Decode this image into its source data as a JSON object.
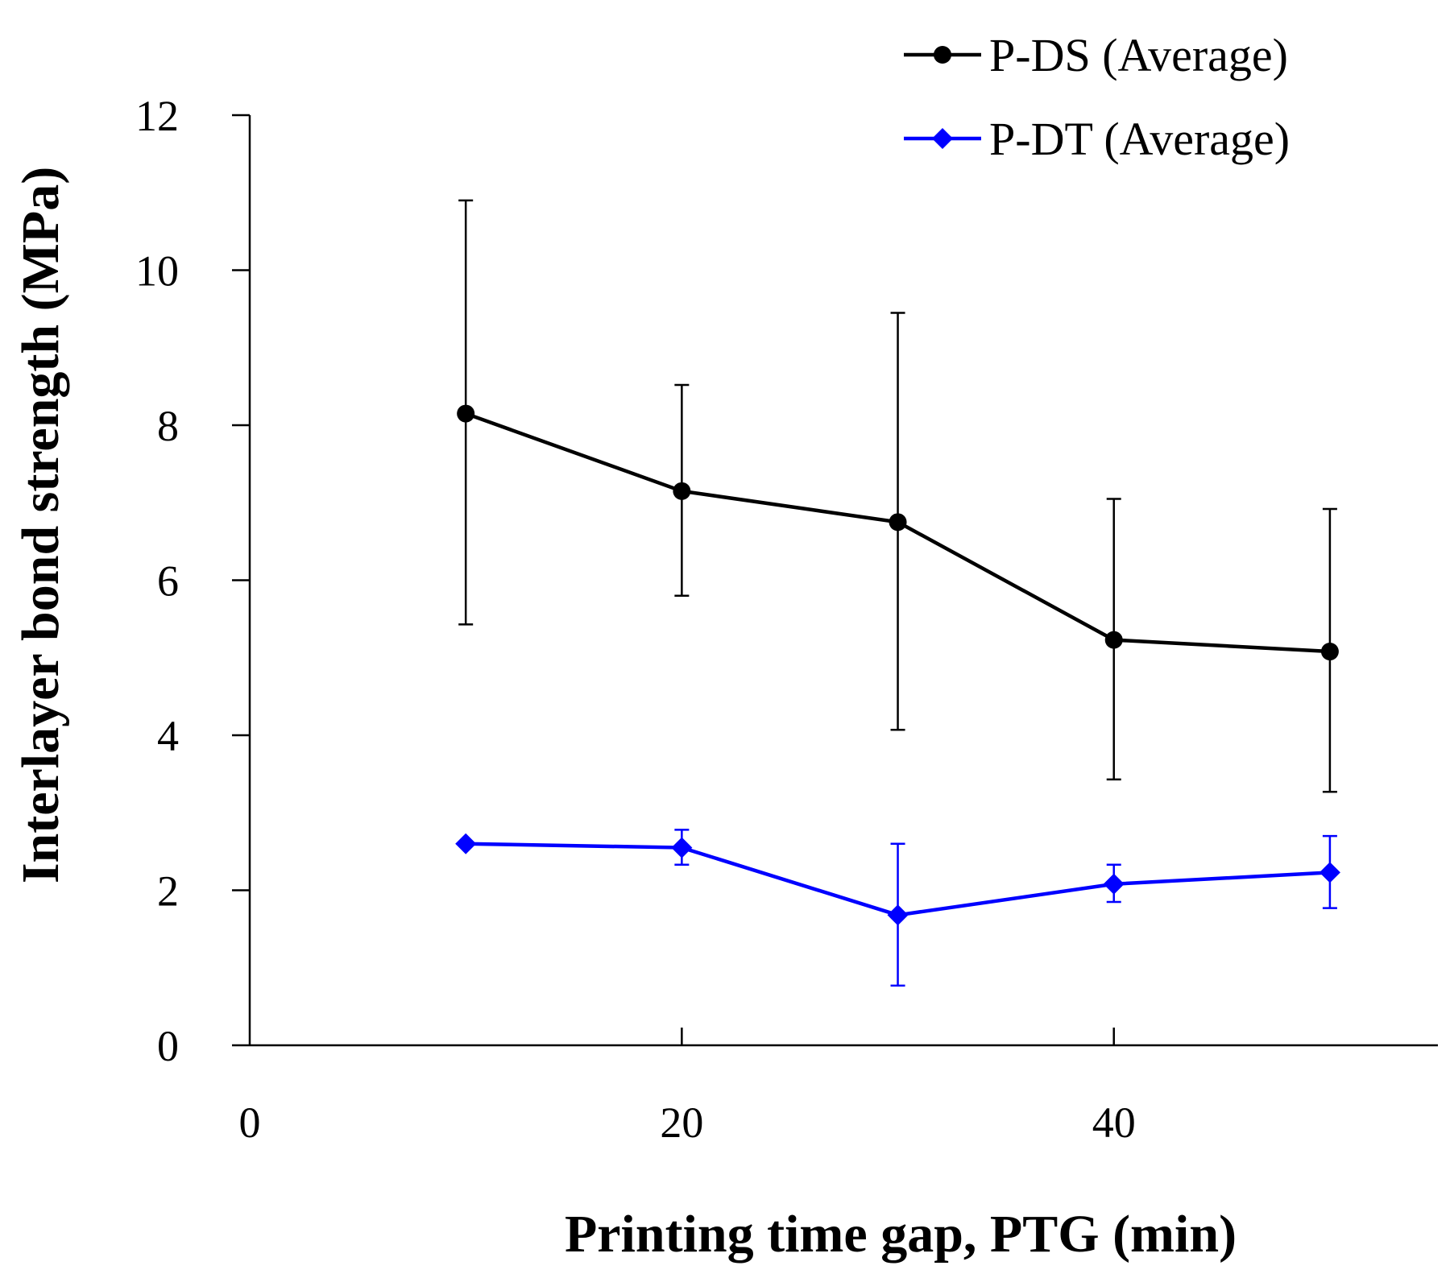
{
  "chart_data": {
    "type": "line",
    "title": "",
    "xlabel": "Printing time gap, PTG (min)",
    "ylabel": "Interlayer bond strength (MPa)",
    "xlim": [
      0,
      55
    ],
    "ylim": [
      0,
      12
    ],
    "xticks": [
      0,
      20,
      40
    ],
    "yticks": [
      0,
      2,
      4,
      6,
      8,
      10,
      12
    ],
    "grid": false,
    "legend_position": "top-right",
    "series": [
      {
        "name": "P-DS (Average)",
        "color": "#000000",
        "marker": "circle",
        "x": [
          10,
          20,
          30,
          40,
          50
        ],
        "y": [
          8.15,
          7.15,
          6.75,
          5.23,
          5.08
        ],
        "error_low": [
          5.43,
          5.8,
          4.07,
          3.43,
          3.27
        ],
        "error_high": [
          10.9,
          8.52,
          9.45,
          7.05,
          6.92
        ]
      },
      {
        "name": "P-DT (Average)",
        "color": "#0000ff",
        "marker": "diamond",
        "x": [
          10,
          20,
          30,
          40,
          50
        ],
        "y": [
          2.6,
          2.55,
          1.68,
          2.08,
          2.23
        ],
        "error_low": [
          2.6,
          2.33,
          0.77,
          1.85,
          1.77
        ],
        "error_high": [
          2.6,
          2.78,
          2.6,
          2.33,
          2.7
        ]
      }
    ]
  }
}
